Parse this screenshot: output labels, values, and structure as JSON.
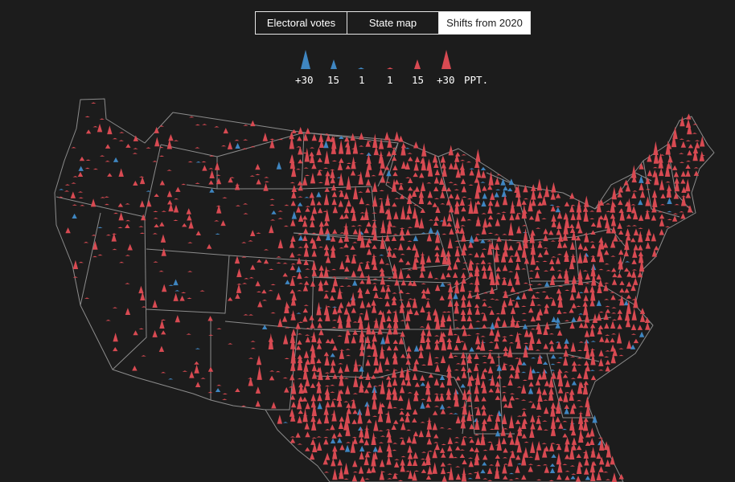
{
  "tabs": [
    {
      "label": "Electoral votes",
      "active": false
    },
    {
      "label": "State map",
      "active": false
    },
    {
      "label": "Shifts from 2020",
      "active": true
    }
  ],
  "legend": {
    "items": [
      {
        "label": "+30",
        "party": "dem",
        "magnitude": 30
      },
      {
        "label": "15",
        "party": "dem",
        "magnitude": 15
      },
      {
        "label": "1",
        "party": "dem",
        "magnitude": 1
      },
      {
        "label": "1",
        "party": "rep",
        "magnitude": 1
      },
      {
        "label": "15",
        "party": "rep",
        "magnitude": 15
      },
      {
        "label": "+30",
        "party": "rep",
        "magnitude": 30
      }
    ],
    "unit": "PPT."
  },
  "colors": {
    "background": "#1c1c1c",
    "dem_shift": "#3f86c1",
    "rep_shift": "#d84a52",
    "state_border": "#8c8c8c"
  },
  "map": {
    "region": "Contiguous United States",
    "marker": "triangle-by-county"
  }
}
